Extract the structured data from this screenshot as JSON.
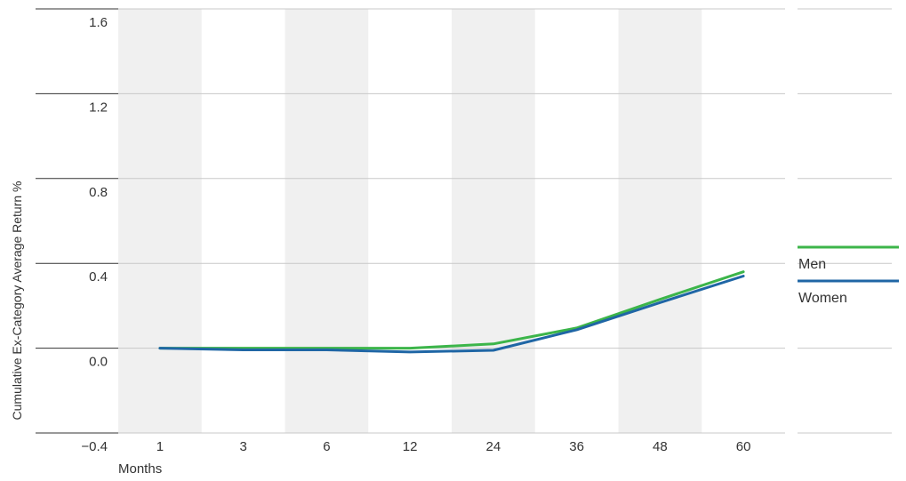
{
  "chart_data": {
    "type": "line",
    "categories": [
      "1",
      "3",
      "6",
      "12",
      "24",
      "36",
      "48",
      "60"
    ],
    "xlabel": "Months",
    "ylabel": "Cumulative Ex-Category Average Return %",
    "ylim": [
      -0.4,
      1.6
    ],
    "yticks": [
      "1.6",
      "1.2",
      "0.8",
      "0.4",
      "0.0",
      "−0.4"
    ],
    "ytick_values": [
      1.6,
      1.2,
      0.8,
      0.4,
      0.0,
      -0.4
    ],
    "grid": true,
    "alternating_column_shading": true,
    "legend_position": "right",
    "series": [
      {
        "name": "Men",
        "color": "#3cb54a",
        "values": [
          0.0,
          0.0,
          0.0,
          0.0,
          0.02,
          0.095,
          0.23,
          0.36
        ]
      },
      {
        "name": "Women",
        "color": "#1f66a5",
        "values": [
          0.0,
          -0.008,
          -0.008,
          -0.018,
          -0.01,
          0.087,
          0.215,
          0.34
        ]
      }
    ]
  }
}
